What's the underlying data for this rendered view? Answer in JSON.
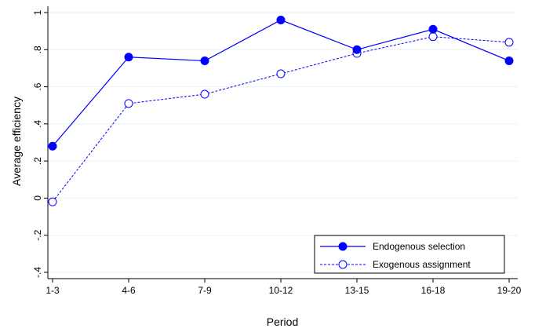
{
  "chart_data": {
    "type": "line",
    "title": "",
    "xlabel": "Period",
    "ylabel": "Average efficiency",
    "categories": [
      "1-3",
      "4-6",
      "7-9",
      "10-12",
      "13-15",
      "16-18",
      "19-20"
    ],
    "ylim": [
      -0.4,
      1.0
    ],
    "yticks": [
      -0.4,
      -0.2,
      0,
      0.2,
      0.4,
      0.6,
      0.8,
      1
    ],
    "ytick_labels": [
      "-.4",
      "-.2",
      "0",
      ".2",
      ".4",
      ".6",
      ".8",
      "1"
    ],
    "grid": true,
    "legend_position": "bottom-right",
    "series": [
      {
        "name": "Endogenous selection",
        "values": [
          0.28,
          0.76,
          0.74,
          0.96,
          0.8,
          0.91,
          0.74
        ],
        "color": "#0000ff",
        "line_style": "solid",
        "marker": "filled-circle"
      },
      {
        "name": "Exogenous assignment",
        "values": [
          -0.02,
          0.51,
          0.56,
          0.67,
          0.78,
          0.87,
          0.84
        ],
        "color": "#0000ff",
        "line_style": "dashed",
        "marker": "hollow-circle"
      }
    ]
  }
}
